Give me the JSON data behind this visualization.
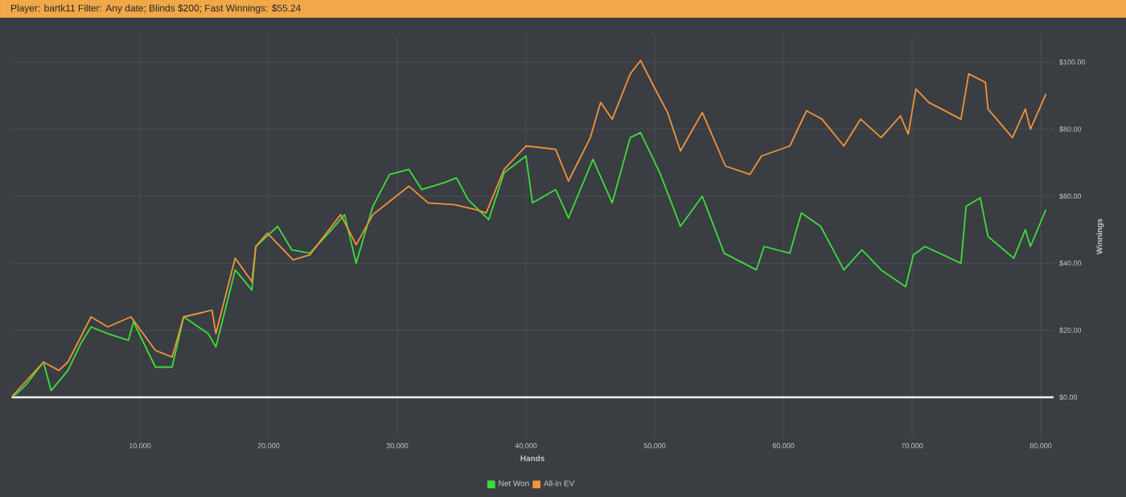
{
  "chart_data": {
    "type": "line",
    "title": "Player: bartk11 Filter: Any date; Blinds $200; Fast Winnings: $55.24",
    "xlabel": "Hands",
    "ylabel": "Winnings",
    "xlim": [
      0,
      81000
    ],
    "ylim": [
      -12,
      108
    ],
    "xticks": [
      {
        "value": 10000,
        "label": "10,000"
      },
      {
        "value": 20000,
        "label": "20,000"
      },
      {
        "value": 30000,
        "label": "30,000"
      },
      {
        "value": 40000,
        "label": "40,000"
      },
      {
        "value": 50000,
        "label": "50,000"
      },
      {
        "value": 60000,
        "label": "60,000"
      },
      {
        "value": 70000,
        "label": "70,000"
      },
      {
        "value": 80000,
        "label": "80,000"
      }
    ],
    "yticks": [
      {
        "value": 0,
        "label": "$0.00"
      },
      {
        "value": 20,
        "label": "$20.00"
      },
      {
        "value": 40,
        "label": "$40.00"
      },
      {
        "value": 60,
        "label": "$60.00"
      },
      {
        "value": 80,
        "label": "$80.00"
      },
      {
        "value": 100,
        "label": "$100.00"
      }
    ],
    "grid": true,
    "legend": "bottom",
    "marker": "none",
    "line_style": "solid",
    "ref_lines": [
      {
        "axis": "y",
        "value": 0,
        "color": "#f2f2f2"
      }
    ],
    "series": [
      {
        "name": "Net Won",
        "color": "#3ddc3d",
        "x": [
          0,
          400,
          1200,
          2500,
          3100,
          4400,
          5400,
          6200,
          7500,
          9100,
          9500,
          11200,
          12500,
          13400,
          15300,
          15900,
          17400,
          18700,
          19000,
          20700,
          21800,
          23200,
          24900,
          25900,
          26800,
          28100,
          29400,
          30900,
          31900,
          33600,
          34600,
          35500,
          37100,
          38300,
          40000,
          40500,
          42300,
          43300,
          45200,
          46700,
          48100,
          48900,
          50400,
          52000,
          53700,
          55400,
          57900,
          58500,
          60500,
          61400,
          62900,
          64700,
          66100,
          67600,
          69500,
          70100,
          71000,
          73800,
          74200,
          75300,
          75900,
          77900,
          78800,
          79200,
          80400
        ],
        "values": [
          0,
          1,
          4,
          10.5,
          2,
          8,
          16,
          21,
          19,
          17,
          22.5,
          9,
          9,
          24,
          19,
          15,
          38,
          32,
          45,
          51,
          44,
          43,
          50,
          54.5,
          40,
          57,
          66.5,
          68,
          62,
          64,
          65.5,
          59,
          53,
          67,
          72,
          58,
          62,
          53.5,
          71,
          58,
          77.5,
          79,
          67,
          51,
          60,
          43,
          38,
          45,
          43,
          55,
          51,
          38,
          44,
          38,
          33,
          42.5,
          45,
          40,
          57,
          59.5,
          48,
          41.5,
          50,
          45,
          56
        ]
      },
      {
        "name": "All-in EV",
        "color": "#f0943a",
        "x": [
          0,
          2500,
          3700,
          4400,
          6200,
          7500,
          9300,
          11200,
          12500,
          13400,
          15600,
          15900,
          17400,
          18700,
          19000,
          19900,
          21900,
          23200,
          25600,
          26800,
          28100,
          30900,
          32400,
          34400,
          36100,
          36900,
          38300,
          40000,
          42300,
          43300,
          45000,
          45800,
          46700,
          48100,
          48900,
          49900,
          51000,
          52000,
          53700,
          55500,
          57400,
          58300,
          60500,
          61800,
          63000,
          64700,
          66000,
          67600,
          69100,
          69700,
          70300,
          71300,
          73800,
          74400,
          75700,
          75900,
          77800,
          78800,
          79200,
          80400
        ],
        "values": [
          0,
          10.5,
          8,
          10.5,
          24,
          21,
          24,
          14,
          12,
          24,
          26,
          19,
          41.5,
          34.5,
          45,
          49,
          41,
          42.5,
          54.5,
          45.5,
          54.5,
          63,
          58,
          57.5,
          56,
          55,
          68,
          75,
          74,
          64.5,
          77.5,
          88,
          83,
          96.5,
          100.5,
          93,
          85,
          73.5,
          85,
          69,
          66.5,
          72,
          75,
          85.5,
          83,
          75,
          83,
          77.5,
          84,
          78.5,
          92,
          88,
          83,
          96.5,
          94,
          86,
          77.5,
          86,
          80,
          90.5
        ]
      }
    ]
  }
}
